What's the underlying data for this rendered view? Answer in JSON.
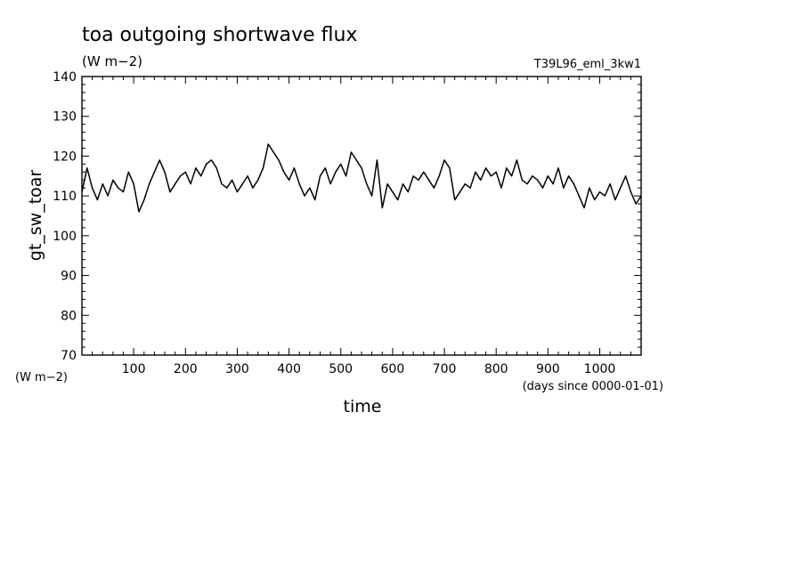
{
  "chart_data": {
    "type": "line",
    "title": "toa outgoing shortwave flux",
    "subtitle": "(W m−2)",
    "experiment": "T39L96_eml_3kw1",
    "xlabel": "time",
    "x_units": "(days since 0000-01-01)",
    "ylabel": "gt_sw_toar",
    "y_units": "(W m−2)",
    "xlim": [
      0,
      1080
    ],
    "ylim": [
      70,
      140
    ],
    "x_ticks": [
      "100",
      "200",
      "300",
      "400",
      "500",
      "600",
      "700",
      "800",
      "900",
      "1000"
    ],
    "y_ticks": [
      "70",
      "80",
      "90",
      "100",
      "110",
      "120",
      "130",
      "140"
    ],
    "grid": false,
    "series": [
      {
        "x": [
          0,
          10,
          20,
          30,
          40,
          50,
          60,
          70,
          80,
          90,
          100,
          110,
          120,
          130,
          140,
          150,
          160,
          170,
          180,
          190,
          200,
          210,
          220,
          230,
          240,
          250,
          260,
          270,
          280,
          290,
          300,
          310,
          320,
          330,
          340,
          350,
          360,
          370,
          380,
          390,
          400,
          410,
          420,
          430,
          440,
          450,
          460,
          470,
          480,
          490,
          500,
          510,
          520,
          530,
          540,
          550,
          560,
          570,
          580,
          590,
          600,
          610,
          620,
          630,
          640,
          650,
          660,
          670,
          680,
          690,
          700,
          710,
          720,
          730,
          740,
          750,
          760,
          770,
          780,
          790,
          800,
          810,
          820,
          830,
          840,
          850,
          860,
          870,
          880,
          890,
          900,
          910,
          920,
          930,
          940,
          950,
          960,
          970,
          980,
          990,
          1000,
          1010,
          1020,
          1030,
          1040,
          1050,
          1060,
          1070,
          1080
        ],
        "y": [
          111,
          117,
          112,
          109,
          113,
          110,
          114,
          112,
          111,
          116,
          113,
          106,
          109,
          113,
          116,
          119,
          116,
          111,
          113,
          115,
          116,
          113,
          117,
          115,
          118,
          119,
          117,
          113,
          112,
          114,
          111,
          113,
          115,
          112,
          114,
          117,
          123,
          121,
          119,
          116,
          114,
          117,
          113,
          110,
          112,
          109,
          115,
          117,
          113,
          116,
          118,
          115,
          121,
          119,
          117,
          113,
          110,
          119,
          107,
          113,
          111,
          109,
          113,
          111,
          115,
          114,
          116,
          114,
          112,
          115,
          119,
          117,
          109,
          111,
          113,
          112,
          116,
          114,
          117,
          115,
          116,
          112,
          117,
          115,
          119,
          114,
          113,
          115,
          114,
          112,
          115,
          113,
          117,
          112,
          115,
          113,
          110,
          107,
          112,
          109,
          111,
          110,
          113,
          109,
          112,
          115,
          111,
          108,
          110
        ]
      }
    ]
  }
}
